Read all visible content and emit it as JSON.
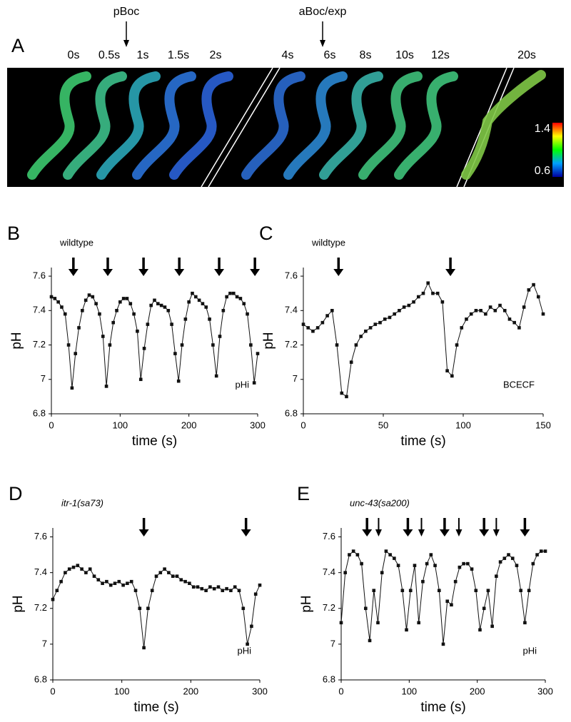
{
  "panel_a": {
    "label": "A",
    "frames": [
      "0s",
      "0.5s",
      "1s",
      "1.5s",
      "2s",
      "4s",
      "6s",
      "8s",
      "10s",
      "12s",
      "20s"
    ],
    "markers": [
      "pBoc",
      "aBoc/exp"
    ],
    "colorbar": [
      "1.4",
      "0.6"
    ]
  },
  "chart_data": [
    {
      "type": "line",
      "label": "B",
      "annotation": "wildtype",
      "corner_text": "pHi",
      "x_label": "time (s)",
      "y_label": "pH",
      "color": "#111111",
      "x": [
        0,
        5,
        10,
        15,
        20,
        25,
        30,
        35,
        40,
        45,
        50,
        55,
        60,
        65,
        70,
        75,
        80,
        85,
        90,
        95,
        100,
        105,
        110,
        115,
        120,
        125,
        130,
        135,
        140,
        145,
        150,
        155,
        160,
        165,
        170,
        175,
        180,
        185,
        190,
        195,
        200,
        205,
        210,
        215,
        220,
        225,
        230,
        235,
        240,
        245,
        250,
        255,
        260,
        265,
        270,
        275,
        280,
        285,
        290,
        295,
        300
      ],
      "values": [
        7.48,
        7.47,
        7.45,
        7.42,
        7.38,
        7.2,
        6.95,
        7.15,
        7.3,
        7.4,
        7.46,
        7.49,
        7.48,
        7.44,
        7.38,
        7.25,
        6.96,
        7.2,
        7.33,
        7.4,
        7.45,
        7.47,
        7.47,
        7.44,
        7.38,
        7.28,
        7.0,
        7.18,
        7.32,
        7.43,
        7.46,
        7.44,
        7.43,
        7.42,
        7.4,
        7.32,
        7.15,
        6.99,
        7.2,
        7.35,
        7.45,
        7.5,
        7.48,
        7.46,
        7.44,
        7.42,
        7.35,
        7.2,
        7.02,
        7.25,
        7.4,
        7.48,
        7.5,
        7.5,
        7.48,
        7.47,
        7.44,
        7.38,
        7.2,
        6.98,
        7.15
      ],
      "arrows": [
        32,
        82,
        134,
        186,
        244,
        296
      ],
      "xlim": [
        0,
        300
      ],
      "xticks": [
        0,
        100,
        200,
        300
      ],
      "ylim": [
        6.8,
        7.65
      ],
      "yticks": [
        6.8,
        7,
        7.2,
        7.4,
        7.6
      ]
    },
    {
      "type": "line",
      "label": "C",
      "annotation": "wildtype",
      "corner_text": "BCECF",
      "x_label": "time (s)",
      "y_label": "pH",
      "color": "#111111",
      "x": [
        0,
        3,
        6,
        9,
        12,
        15,
        18,
        21,
        24,
        27,
        30,
        33,
        36,
        39,
        42,
        45,
        48,
        51,
        54,
        57,
        60,
        63,
        66,
        69,
        72,
        75,
        78,
        81,
        84,
        87,
        90,
        93,
        96,
        99,
        102,
        105,
        108,
        111,
        114,
        117,
        120,
        123,
        126,
        129,
        132,
        135,
        138,
        141,
        144,
        147,
        150
      ],
      "values": [
        7.32,
        7.3,
        7.28,
        7.3,
        7.33,
        7.37,
        7.4,
        7.2,
        6.92,
        6.9,
        7.1,
        7.2,
        7.25,
        7.28,
        7.3,
        7.32,
        7.33,
        7.35,
        7.36,
        7.38,
        7.4,
        7.42,
        7.43,
        7.45,
        7.48,
        7.5,
        7.56,
        7.5,
        7.5,
        7.45,
        7.05,
        7.02,
        7.2,
        7.3,
        7.35,
        7.38,
        7.4,
        7.4,
        7.38,
        7.42,
        7.4,
        7.43,
        7.4,
        7.35,
        7.33,
        7.3,
        7.42,
        7.52,
        7.55,
        7.48,
        7.38
      ],
      "arrows": [
        22,
        92
      ],
      "xlim": [
        0,
        150
      ],
      "xticks": [
        0,
        50,
        100,
        150
      ],
      "ylim": [
        6.8,
        7.65
      ],
      "yticks": [
        6.8,
        7,
        7.2,
        7.4,
        7.6
      ]
    },
    {
      "type": "line",
      "label": "D",
      "annotation": "itr-1(sa73)",
      "annotation_italic": true,
      "corner_text": "pHi",
      "x_label": "time (s)",
      "y_label": "pH",
      "color": "#111111",
      "x": [
        0,
        6,
        12,
        18,
        24,
        30,
        36,
        42,
        48,
        54,
        60,
        66,
        72,
        78,
        84,
        90,
        96,
        102,
        108,
        114,
        120,
        126,
        132,
        138,
        144,
        150,
        156,
        162,
        168,
        174,
        180,
        186,
        192,
        198,
        204,
        210,
        216,
        222,
        228,
        234,
        240,
        246,
        252,
        258,
        264,
        270,
        276,
        282,
        288,
        294,
        300
      ],
      "values": [
        7.25,
        7.3,
        7.35,
        7.4,
        7.42,
        7.43,
        7.44,
        7.42,
        7.4,
        7.42,
        7.38,
        7.36,
        7.34,
        7.35,
        7.33,
        7.34,
        7.35,
        7.33,
        7.34,
        7.35,
        7.3,
        7.2,
        6.98,
        7.2,
        7.3,
        7.38,
        7.4,
        7.42,
        7.4,
        7.38,
        7.38,
        7.36,
        7.35,
        7.34,
        7.32,
        7.32,
        7.31,
        7.3,
        7.32,
        7.31,
        7.32,
        7.3,
        7.31,
        7.3,
        7.32,
        7.3,
        7.2,
        7.0,
        7.1,
        7.28,
        7.33
      ],
      "arrows": [
        132,
        280
      ],
      "xlim": [
        0,
        300
      ],
      "xticks": [
        0,
        100,
        200,
        300
      ],
      "ylim": [
        6.8,
        7.65
      ],
      "yticks": [
        6.8,
        7,
        7.2,
        7.4,
        7.6
      ]
    },
    {
      "type": "line",
      "label": "E",
      "annotation": "unc-43(sa200)",
      "annotation_italic": true,
      "corner_text": "pHi",
      "x_label": "time (s)",
      "y_label": "pH",
      "color": "#111111",
      "x": [
        0,
        6,
        12,
        18,
        24,
        30,
        36,
        42,
        48,
        54,
        60,
        66,
        72,
        78,
        84,
        90,
        96,
        102,
        108,
        114,
        120,
        126,
        132,
        138,
        144,
        150,
        156,
        162,
        168,
        174,
        180,
        186,
        192,
        198,
        204,
        210,
        216,
        222,
        228,
        234,
        240,
        246,
        252,
        258,
        264,
        270,
        276,
        282,
        288,
        294,
        300
      ],
      "values": [
        7.12,
        7.4,
        7.5,
        7.52,
        7.5,
        7.45,
        7.2,
        7.02,
        7.3,
        7.12,
        7.4,
        7.52,
        7.5,
        7.48,
        7.44,
        7.3,
        7.08,
        7.3,
        7.44,
        7.12,
        7.35,
        7.45,
        7.5,
        7.44,
        7.3,
        7.0,
        7.24,
        7.22,
        7.35,
        7.43,
        7.45,
        7.45,
        7.42,
        7.3,
        7.08,
        7.2,
        7.3,
        7.1,
        7.38,
        7.46,
        7.48,
        7.5,
        7.48,
        7.44,
        7.3,
        7.12,
        7.3,
        7.45,
        7.5,
        7.52,
        7.52
      ],
      "arrows": [
        38,
        98,
        152,
        210,
        270
      ],
      "small_arrows": [
        55,
        118,
        173,
        228
      ],
      "xlim": [
        0,
        300
      ],
      "xticks": [
        0,
        100,
        200,
        300
      ],
      "ylim": [
        6.8,
        7.65
      ],
      "yticks": [
        6.8,
        7,
        7.2,
        7.4,
        7.6
      ]
    }
  ]
}
